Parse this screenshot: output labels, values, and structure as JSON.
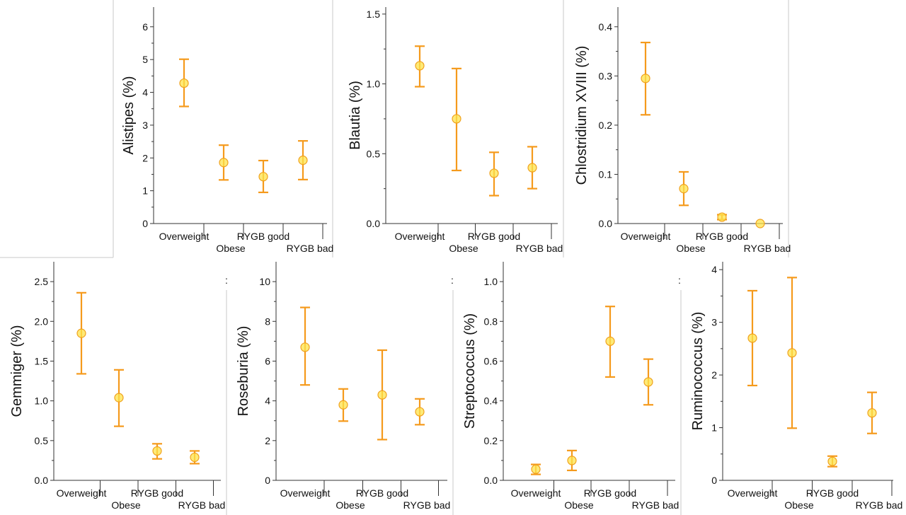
{
  "palette": {
    "error_bar": "#f59a1c",
    "point_fill": "#fde34a",
    "axis": "#333333",
    "panel_border": "#c8c8c8"
  },
  "chart_data": [
    {
      "type": "scatter",
      "ylabel": "Alistipes (%)",
      "categories": [
        "Overweight",
        "Obese",
        "RYGB good",
        "RYGB bad"
      ],
      "ylim": [
        0,
        6.6
      ],
      "yticks": [
        0,
        1,
        2,
        3,
        4,
        5,
        6
      ],
      "tick_labels": [
        "0",
        "1",
        "2",
        "3",
        "4",
        "5",
        "6"
      ],
      "series": [
        {
          "values": [
            4.28,
            1.86,
            1.43,
            1.93
          ],
          "lower": [
            3.57,
            1.33,
            0.95,
            1.34
          ],
          "upper": [
            5.01,
            2.39,
            1.92,
            2.52
          ]
        }
      ]
    },
    {
      "type": "scatter",
      "ylabel": "Blautia (%)",
      "categories": [
        "Overweight",
        "Obese",
        "RYGB good",
        "RYGB bad"
      ],
      "ylim": [
        0,
        1.55
      ],
      "yticks": [
        0,
        0.5,
        1,
        1.5
      ],
      "tick_labels": [
        "0.0",
        "0.5",
        "1.0",
        "1.5"
      ],
      "series": [
        {
          "values": [
            1.13,
            0.75,
            0.36,
            0.4
          ],
          "lower": [
            0.98,
            0.38,
            0.2,
            0.25
          ],
          "upper": [
            1.27,
            1.11,
            0.51,
            0.55
          ]
        }
      ]
    },
    {
      "type": "scatter",
      "ylabel": "Chlostridium XVIII (%)",
      "categories": [
        "Overweight",
        "Obese",
        "RYGB good",
        "RYGB bad"
      ],
      "ylim": [
        0,
        0.44
      ],
      "yticks": [
        0,
        0.1,
        0.2,
        0.3,
        0.4
      ],
      "tick_labels": [
        "0.0",
        "0.1",
        "0.2",
        "0.3",
        "0.4"
      ],
      "series": [
        {
          "values": [
            0.295,
            0.071,
            0.013,
            0.0
          ],
          "lower": [
            0.221,
            0.037,
            0.008,
            0.0
          ],
          "upper": [
            0.368,
            0.105,
            0.018,
            0.0
          ]
        }
      ]
    },
    {
      "type": "scatter",
      "ylabel": "Gemmiger (%)",
      "categories": [
        "Overweight",
        "Obese",
        "RYGB good",
        "RYGB bad"
      ],
      "ylim": [
        0,
        2.75
      ],
      "yticks": [
        0,
        0.5,
        1,
        1.5,
        2,
        2.5
      ],
      "tick_labels": [
        "0.0",
        "0.5",
        "1.0",
        "1.5",
        "2.0",
        "2.5"
      ],
      "series": [
        {
          "values": [
            1.85,
            1.04,
            0.37,
            0.29
          ],
          "lower": [
            1.34,
            0.68,
            0.27,
            0.21
          ],
          "upper": [
            2.36,
            1.39,
            0.46,
            0.37
          ]
        }
      ]
    },
    {
      "type": "scatter",
      "ylabel": "Roseburia (%)",
      "categories": [
        "Overweight",
        "Obese",
        "RYGB good",
        "RYGB bad"
      ],
      "ylim": [
        0,
        11
      ],
      "yticks": [
        0,
        2,
        4,
        6,
        8,
        10
      ],
      "tick_labels": [
        "0",
        "2",
        "4",
        "6",
        "8",
        "10"
      ],
      "series": [
        {
          "values": [
            6.7,
            3.8,
            4.3,
            3.45
          ],
          "lower": [
            4.8,
            2.98,
            2.05,
            2.8
          ],
          "upper": [
            8.7,
            4.6,
            6.55,
            4.1
          ]
        }
      ]
    },
    {
      "type": "scatter",
      "ylabel": "Streptococcus (%)",
      "categories": [
        "Overweight",
        "Obese",
        "RYGB good",
        "RYGB bad"
      ],
      "ylim": [
        0,
        1.1
      ],
      "yticks": [
        0,
        0.2,
        0.4,
        0.6,
        0.8,
        1
      ],
      "tick_labels": [
        "0.0",
        "0.2",
        "0.4",
        "0.6",
        "0.8",
        "1.0"
      ],
      "series": [
        {
          "values": [
            0.056,
            0.1,
            0.7,
            0.495
          ],
          "lower": [
            0.03,
            0.05,
            0.52,
            0.38
          ],
          "upper": [
            0.08,
            0.15,
            0.875,
            0.61
          ]
        }
      ]
    },
    {
      "type": "scatter",
      "ylabel": "Ruminococcus (%)",
      "categories": [
        "Overweight",
        "Obese",
        "RYGB good",
        "RYGB bad"
      ],
      "ylim": [
        0,
        4.15
      ],
      "yticks": [
        0,
        1,
        2,
        3,
        4
      ],
      "tick_labels": [
        "0",
        "1",
        "2",
        "3",
        "4"
      ],
      "series": [
        {
          "values": [
            2.7,
            2.42,
            0.36,
            1.28
          ],
          "lower": [
            1.8,
            0.99,
            0.26,
            0.89
          ],
          "upper": [
            3.6,
            3.85,
            0.46,
            1.67
          ]
        }
      ]
    }
  ]
}
